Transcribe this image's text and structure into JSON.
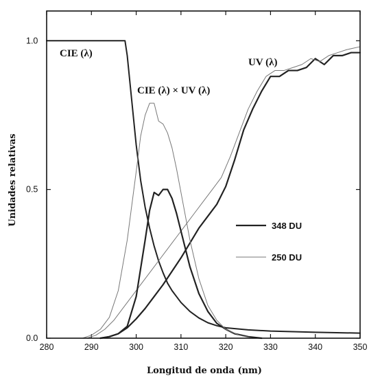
{
  "chart_data": {
    "type": "line",
    "title": "",
    "xlabel": "Longitud de onda (nm)",
    "ylabel": "Unidades relativas",
    "xlim": [
      280,
      350
    ],
    "ylim": [
      0,
      1.1
    ],
    "x_ticks": [
      "280",
      "290",
      "300",
      "310",
      "320",
      "330",
      "340",
      "350"
    ],
    "y_ticks": [
      "0.0",
      "0.5",
      "1.0"
    ],
    "grid": false,
    "legend_position": "center-right",
    "legend": [
      {
        "label": "348 DU",
        "color": "#222222",
        "width": 2.2
      },
      {
        "label": "250 DU",
        "color": "#777777",
        "width": 1
      }
    ],
    "annotations": {
      "cie": "CIE (λ)",
      "product": "CIE (λ) × UV (λ)",
      "uv": "UV (λ)"
    },
    "series": [
      {
        "key": "cie",
        "color": "#222222",
        "width": 2,
        "points": [
          [
            280,
            1.0
          ],
          [
            297.5,
            1.0
          ],
          [
            298,
            0.95
          ],
          [
            299,
            0.8
          ],
          [
            300,
            0.65
          ],
          [
            301,
            0.53
          ],
          [
            302,
            0.44
          ],
          [
            303,
            0.37
          ],
          [
            304,
            0.31
          ],
          [
            305,
            0.26
          ],
          [
            306,
            0.22
          ],
          [
            307,
            0.185
          ],
          [
            308,
            0.16
          ],
          [
            310,
            0.12
          ],
          [
            312,
            0.09
          ],
          [
            314,
            0.068
          ],
          [
            316,
            0.052
          ],
          [
            318,
            0.042
          ],
          [
            320,
            0.035
          ],
          [
            325,
            0.028
          ],
          [
            330,
            0.024
          ],
          [
            340,
            0.02
          ],
          [
            350,
            0.017
          ]
        ]
      },
      {
        "key": "uv_348",
        "color": "#222222",
        "width": 2.2,
        "points": [
          [
            292,
            0.0
          ],
          [
            294,
            0.005
          ],
          [
            296,
            0.015
          ],
          [
            298,
            0.035
          ],
          [
            300,
            0.065
          ],
          [
            302,
            0.1
          ],
          [
            304,
            0.14
          ],
          [
            306,
            0.18
          ],
          [
            308,
            0.225
          ],
          [
            310,
            0.27
          ],
          [
            312,
            0.32
          ],
          [
            314,
            0.37
          ],
          [
            316,
            0.41
          ],
          [
            318,
            0.45
          ],
          [
            320,
            0.51
          ],
          [
            322,
            0.6
          ],
          [
            324,
            0.7
          ],
          [
            326,
            0.77
          ],
          [
            328,
            0.83
          ],
          [
            330,
            0.88
          ],
          [
            332,
            0.88
          ],
          [
            334,
            0.9
          ],
          [
            336,
            0.9
          ],
          [
            338,
            0.91
          ],
          [
            340,
            0.94
          ],
          [
            342,
            0.92
          ],
          [
            344,
            0.95
          ],
          [
            346,
            0.95
          ],
          [
            348,
            0.96
          ],
          [
            350,
            0.96
          ]
        ]
      },
      {
        "key": "uv_250",
        "color": "#777777",
        "width": 1,
        "points": [
          [
            289,
            0.0
          ],
          [
            291,
            0.01
          ],
          [
            293,
            0.03
          ],
          [
            295,
            0.06
          ],
          [
            297,
            0.1
          ],
          [
            299,
            0.14
          ],
          [
            301,
            0.18
          ],
          [
            303,
            0.22
          ],
          [
            305,
            0.26
          ],
          [
            307,
            0.3
          ],
          [
            309,
            0.34
          ],
          [
            311,
            0.38
          ],
          [
            313,
            0.42
          ],
          [
            315,
            0.46
          ],
          [
            317,
            0.5
          ],
          [
            319,
            0.54
          ],
          [
            321,
            0.61
          ],
          [
            323,
            0.69
          ],
          [
            325,
            0.77
          ],
          [
            327,
            0.83
          ],
          [
            329,
            0.88
          ],
          [
            331,
            0.9
          ],
          [
            333,
            0.9
          ],
          [
            335,
            0.91
          ],
          [
            337,
            0.92
          ],
          [
            339,
            0.94
          ],
          [
            341,
            0.93
          ],
          [
            343,
            0.95
          ],
          [
            345,
            0.96
          ],
          [
            347,
            0.97
          ],
          [
            350,
            0.98
          ]
        ]
      },
      {
        "key": "product_348",
        "color": "#222222",
        "width": 2.2,
        "points": [
          [
            292,
            0.0
          ],
          [
            294,
            0.005
          ],
          [
            296,
            0.015
          ],
          [
            298,
            0.04
          ],
          [
            300,
            0.14
          ],
          [
            302,
            0.33
          ],
          [
            303,
            0.43
          ],
          [
            304,
            0.49
          ],
          [
            305,
            0.48
          ],
          [
            306,
            0.5
          ],
          [
            307,
            0.5
          ],
          [
            308,
            0.47
          ],
          [
            309,
            0.42
          ],
          [
            310,
            0.36
          ],
          [
            311,
            0.3
          ],
          [
            312,
            0.24
          ],
          [
            314,
            0.15
          ],
          [
            316,
            0.09
          ],
          [
            318,
            0.05
          ],
          [
            320,
            0.03
          ],
          [
            322,
            0.015
          ],
          [
            325,
            0.005
          ],
          [
            328,
            0.0
          ]
        ]
      },
      {
        "key": "product_250",
        "color": "#777777",
        "width": 1,
        "points": [
          [
            288,
            0.0
          ],
          [
            290,
            0.01
          ],
          [
            292,
            0.03
          ],
          [
            294,
            0.07
          ],
          [
            296,
            0.16
          ],
          [
            298,
            0.33
          ],
          [
            300,
            0.56
          ],
          [
            301,
            0.68
          ],
          [
            302,
            0.75
          ],
          [
            303,
            0.79
          ],
          [
            304,
            0.79
          ],
          [
            305,
            0.73
          ],
          [
            306,
            0.72
          ],
          [
            307,
            0.69
          ],
          [
            308,
            0.64
          ],
          [
            309,
            0.57
          ],
          [
            310,
            0.49
          ],
          [
            311,
            0.41
          ],
          [
            312,
            0.33
          ],
          [
            314,
            0.2
          ],
          [
            316,
            0.11
          ],
          [
            318,
            0.06
          ],
          [
            320,
            0.03
          ],
          [
            323,
            0.01
          ],
          [
            326,
            0.0
          ]
        ]
      }
    ]
  }
}
